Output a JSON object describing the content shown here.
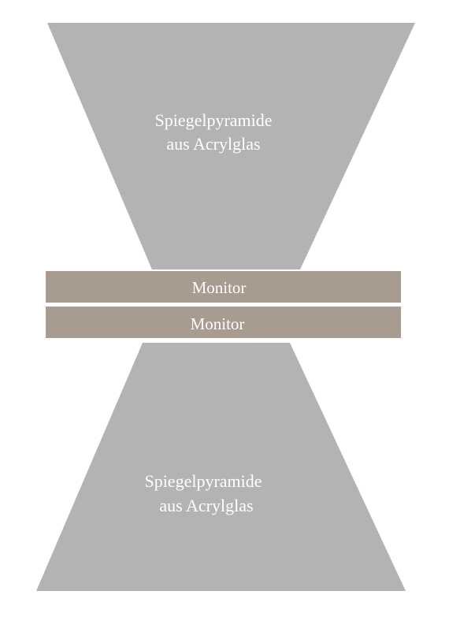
{
  "diagram": {
    "top_pyramid": {
      "label_line1": "Spiegelpyramide",
      "label_line2": "aus Acrylglas"
    },
    "monitor_top": {
      "label": "Monitor"
    },
    "monitor_bottom": {
      "label": "Monitor"
    },
    "bottom_pyramid": {
      "label_line1": "Spiegelpyramide",
      "label_line2": "aus Acrylglas"
    }
  },
  "colors": {
    "pyramid_fill": "#b3b3b3",
    "monitor_fill": "#a89c91",
    "text": "#ffffff",
    "background": "#ffffff"
  }
}
